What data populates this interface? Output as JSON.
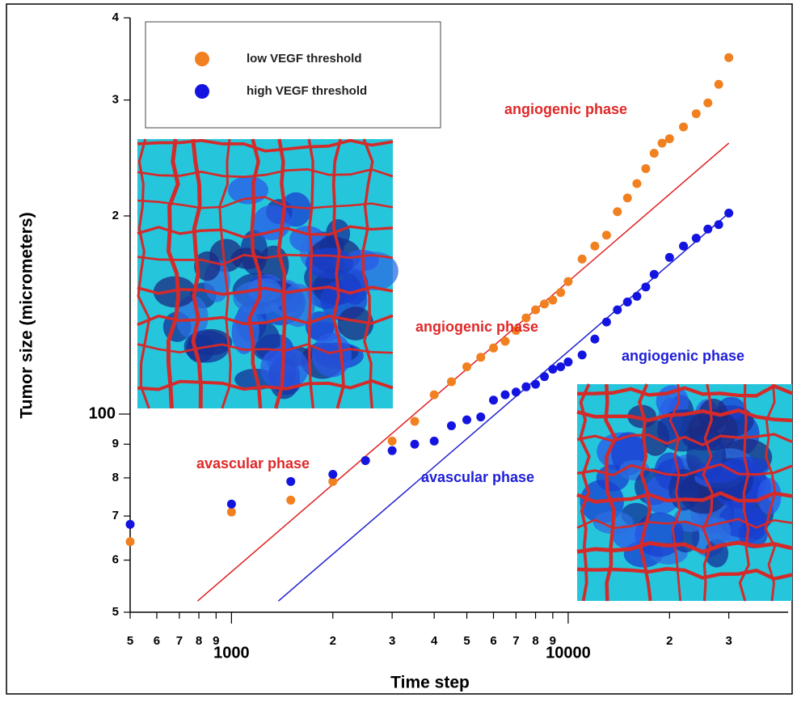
{
  "chart_data": {
    "type": "scatter",
    "xlabel": "Time step",
    "ylabel": "Tumor size (micrometers)",
    "xscale": "log",
    "yscale": "log",
    "xlim": [
      500,
      45000
    ],
    "ylim": [
      50,
      400
    ],
    "xticks": [
      {
        "value": 500,
        "label": "5"
      },
      {
        "value": 600,
        "label": "6"
      },
      {
        "value": 700,
        "label": "7"
      },
      {
        "value": 800,
        "label": "8"
      },
      {
        "value": 900,
        "label": "9"
      },
      1000,
      {
        "value": 2000,
        "label": "2"
      },
      {
        "value": 3000,
        "label": "3"
      },
      {
        "value": 4000,
        "label": "4"
      },
      {
        "value": 5000,
        "label": "5"
      },
      {
        "value": 6000,
        "label": "6"
      },
      {
        "value": 7000,
        "label": "7"
      },
      {
        "value": 8000,
        "label": "8"
      },
      {
        "value": 9000,
        "label": "9"
      },
      10000,
      {
        "value": 20000,
        "label": "2"
      },
      {
        "value": 30000,
        "label": "3"
      }
    ],
    "yticks": [
      {
        "value": 50,
        "label": "5"
      },
      {
        "value": 60,
        "label": "6"
      },
      {
        "value": 70,
        "label": "7"
      },
      {
        "value": 80,
        "label": "8"
      },
      {
        "value": 90,
        "label": "9"
      },
      100,
      {
        "value": 200,
        "label": "2"
      },
      {
        "value": 300,
        "label": "3"
      },
      {
        "value": 400,
        "label": "4"
      }
    ],
    "legend": "upper left",
    "series": [
      {
        "name": "low VEGF threshold",
        "color": "#f08020",
        "x": [
          500,
          1000,
          1500,
          2000,
          2500,
          3000,
          3500,
          4000,
          4500,
          5000,
          5500,
          6000,
          6500,
          7000,
          7500,
          8000,
          8500,
          9000,
          9500,
          10000,
          11000,
          12000,
          13000,
          14000,
          15000,
          16000,
          17000,
          18000,
          19000,
          20000,
          22000,
          24000,
          26000,
          28000,
          30000
        ],
        "values": [
          64,
          71,
          74,
          79,
          85,
          91,
          97.5,
          107,
          112,
          118,
          122,
          126,
          129,
          134,
          140,
          144,
          147,
          149,
          153,
          159,
          172,
          180,
          187,
          203,
          213,
          224,
          236,
          249,
          258,
          262,
          273,
          286,
          297,
          317,
          348
        ]
      },
      {
        "name": "high VEGF threshold",
        "color": "#1414e0",
        "x": [
          500,
          1000,
          1500,
          2000,
          2500,
          3000,
          3500,
          4000,
          4500,
          5000,
          5500,
          6000,
          6500,
          7000,
          7500,
          8000,
          8500,
          9000,
          9500,
          10000,
          11000,
          12000,
          13000,
          14000,
          15000,
          16000,
          17000,
          18000,
          20000,
          22000,
          24000,
          26000,
          28000,
          30000
        ],
        "values": [
          68,
          73,
          79,
          81,
          85,
          88,
          90,
          91,
          96,
          98,
          99,
          105,
          107,
          108,
          110,
          111,
          114,
          117,
          118,
          120,
          123,
          130,
          138,
          144,
          148,
          151,
          156,
          163,
          173,
          180,
          185,
          191,
          194,
          202
        ]
      }
    ],
    "reference_lines": [
      {
        "color": "#e02020",
        "x": [
          793,
          30000
        ],
        "y": [
          52,
          258
        ]
      },
      {
        "color": "#2020d0",
        "x": [
          1378,
          30000
        ],
        "y": [
          52,
          202
        ]
      }
    ],
    "annotations": [
      {
        "text": "angiogenic phase",
        "color": "#e02828"
      },
      {
        "text": "angiogenic phase",
        "color": "#e02828"
      },
      {
        "text": "angiogenic phase",
        "color": "#1e1ed8"
      },
      {
        "text": "avascular phase",
        "color": "#e02828"
      },
      {
        "text": "avascular phase",
        "color": "#1e1ed8"
      }
    ]
  }
}
